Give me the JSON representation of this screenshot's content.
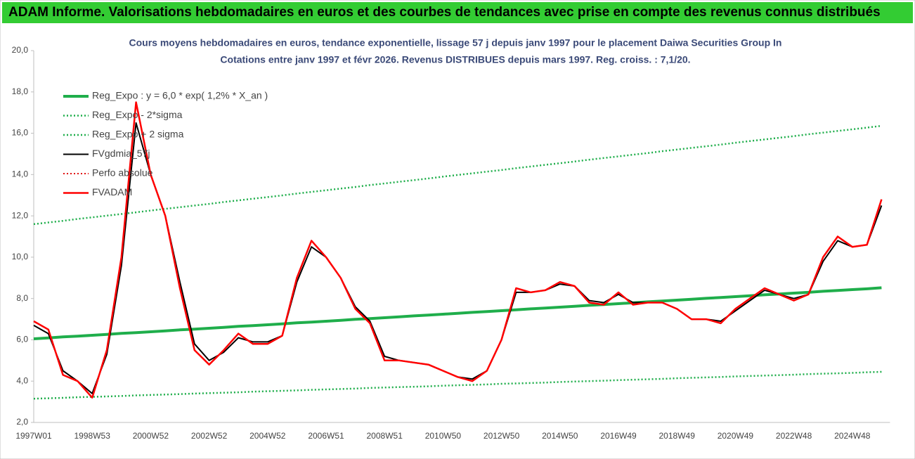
{
  "chart_data": {
    "type": "line",
    "banner": "ADAM Informe. Valorisations hebdomadaires en euros et des courbes de tendances avec prise en compte des revenus connus distribués",
    "title": "Cours moyens hebdomadaires en euros, tendance exponentielle, lissage 57 j depuis janv 1997 pour le placement Daiwa Securities Group In",
    "subtitle": "Cotations entre janv 1997 et févr 2026. Revenus DISTRIBUES depuis mars 1997. Reg. croiss. : 7,1/20.",
    "categories": [
      "1997W01",
      null,
      null,
      null,
      "1998W53",
      null,
      null,
      null,
      "2000W52",
      null,
      null,
      null,
      "2002W52",
      null,
      null,
      null,
      "2004W52",
      null,
      null,
      null,
      "2006W51",
      null,
      null,
      null,
      "2008W51",
      null,
      null,
      null,
      "2010W50",
      null,
      null,
      null,
      "2012W50",
      null,
      null,
      null,
      "2014W50",
      null,
      null,
      null,
      "2016W49",
      null,
      null,
      null,
      "2018W49",
      null,
      null,
      null,
      "2020W49",
      null,
      null,
      null,
      "2022W48",
      null,
      null,
      null,
      "2024W48",
      null,
      null
    ],
    "ylim": [
      2,
      20
    ],
    "yticks": [
      {
        "value": 2,
        "label": "2,0"
      },
      {
        "value": 4,
        "label": "4,0"
      },
      {
        "value": 6,
        "label": "6,0"
      },
      {
        "value": 8,
        "label": "8,0"
      },
      {
        "value": 10,
        "label": "10,0"
      },
      {
        "value": 12,
        "label": "12,0"
      },
      {
        "value": 14,
        "label": "14,0"
      },
      {
        "value": 16,
        "label": "16,0"
      },
      {
        "value": 18,
        "label": "18,0"
      },
      {
        "value": 20,
        "label": "20,0"
      }
    ],
    "grid": false,
    "legend": "upper left",
    "series": [
      {
        "name": "Reg_Expo : y = 6,0 * exp( 1,2% *  X_an )",
        "color": "#1fae4b",
        "style": "solid",
        "width": 4,
        "values": [
          6.05,
          6.09,
          6.14,
          6.18,
          6.22,
          6.26,
          6.31,
          6.35,
          6.39,
          6.43,
          6.48,
          6.52,
          6.56,
          6.6,
          6.65,
          6.69,
          6.73,
          6.77,
          6.82,
          6.86,
          6.9,
          6.94,
          6.99,
          7.03,
          7.07,
          7.11,
          7.16,
          7.2,
          7.24,
          7.28,
          7.33,
          7.37,
          7.41,
          7.45,
          7.5,
          7.54,
          7.58,
          7.62,
          7.67,
          7.71,
          7.75,
          7.79,
          7.84,
          7.88,
          7.92,
          7.96,
          8.01,
          8.05,
          8.09,
          8.13,
          8.18,
          8.22,
          8.26,
          8.3,
          8.35,
          8.39,
          8.43,
          8.47,
          8.52
        ]
      },
      {
        "name": "Reg_Expo - 2*sigma",
        "color": "#1fae4b",
        "style": "dotted",
        "width": 2.5,
        "values": [
          3.15,
          3.17,
          3.19,
          3.22,
          3.24,
          3.26,
          3.28,
          3.31,
          3.33,
          3.35,
          3.37,
          3.4,
          3.42,
          3.44,
          3.46,
          3.49,
          3.51,
          3.53,
          3.55,
          3.58,
          3.6,
          3.62,
          3.64,
          3.67,
          3.69,
          3.71,
          3.73,
          3.75,
          3.78,
          3.8,
          3.82,
          3.84,
          3.87,
          3.89,
          3.91,
          3.93,
          3.96,
          3.98,
          4.0,
          4.02,
          4.05,
          4.07,
          4.09,
          4.11,
          4.14,
          4.16,
          4.18,
          4.2,
          4.23,
          4.25,
          4.27,
          4.29,
          4.31,
          4.34,
          4.36,
          4.38,
          4.4,
          4.43,
          4.45
        ]
      },
      {
        "name": "Reg_Expo + 2 sigma",
        "color": "#1fae4b",
        "style": "dotted",
        "width": 2.5,
        "values": [
          11.6,
          11.68,
          11.76,
          11.85,
          11.93,
          12.01,
          12.09,
          12.17,
          12.26,
          12.34,
          12.42,
          12.5,
          12.58,
          12.67,
          12.75,
          12.83,
          12.91,
          12.99,
          13.08,
          13.16,
          13.24,
          13.32,
          13.4,
          13.49,
          13.57,
          13.65,
          13.73,
          13.81,
          13.9,
          13.98,
          14.06,
          14.14,
          14.22,
          14.31,
          14.39,
          14.47,
          14.55,
          14.63,
          14.72,
          14.8,
          14.88,
          14.96,
          15.04,
          15.13,
          15.21,
          15.29,
          15.37,
          15.45,
          15.54,
          15.62,
          15.7,
          15.78,
          15.86,
          15.95,
          16.03,
          16.11,
          16.19,
          16.27,
          16.36
        ]
      },
      {
        "name": "FVgdmia_57j",
        "color": "#000000",
        "style": "solid",
        "width": 2,
        "values": [
          6.7,
          6.3,
          4.5,
          4.0,
          3.4,
          5.3,
          9.6,
          16.5,
          14.0,
          12.0,
          8.8,
          5.8,
          5.0,
          5.4,
          6.1,
          5.9,
          5.9,
          6.2,
          8.8,
          10.5,
          10.0,
          9.0,
          7.6,
          6.9,
          5.2,
          5.0,
          4.9,
          4.8,
          4.5,
          4.2,
          4.1,
          4.5,
          6.0,
          8.3,
          8.3,
          8.4,
          8.7,
          8.6,
          7.9,
          7.8,
          8.2,
          7.8,
          7.8,
          7.8,
          7.5,
          7.0,
          7.0,
          6.9,
          7.4,
          7.9,
          8.4,
          8.2,
          8.0,
          8.2,
          9.8,
          10.8,
          10.5,
          10.6,
          12.5
        ]
      },
      {
        "name": "Perfo absolue",
        "color": "#e01010",
        "style": "dotted",
        "width": 2,
        "values": [
          null,
          null,
          null,
          null,
          null,
          null,
          null,
          null,
          null,
          null,
          null,
          null,
          null,
          null,
          null,
          null,
          null,
          null,
          null,
          null,
          null,
          null,
          null,
          null,
          null,
          null,
          null,
          null,
          null,
          null,
          null,
          null,
          null,
          null,
          null,
          null,
          null,
          null,
          null,
          null,
          null,
          null,
          null,
          null,
          null,
          null,
          null,
          null,
          null,
          null,
          null,
          null,
          null,
          null,
          null,
          null,
          null,
          null,
          null
        ]
      },
      {
        "name": "FVADAM",
        "color": "#ff0000",
        "style": "solid",
        "width": 2.5,
        "values": [
          6.9,
          6.5,
          4.3,
          4.0,
          3.2,
          5.5,
          10.0,
          17.5,
          14.0,
          12.0,
          8.5,
          5.5,
          4.8,
          5.5,
          6.3,
          5.8,
          5.8,
          6.2,
          9.0,
          10.8,
          10.0,
          9.0,
          7.5,
          6.8,
          5.0,
          5.0,
          4.9,
          4.8,
          4.5,
          4.2,
          4.0,
          4.5,
          6.0,
          8.5,
          8.3,
          8.4,
          8.8,
          8.6,
          7.8,
          7.7,
          8.3,
          7.7,
          7.8,
          7.8,
          7.5,
          7.0,
          7.0,
          6.8,
          7.5,
          8.0,
          8.5,
          8.2,
          7.9,
          8.2,
          10.0,
          11.0,
          10.5,
          10.6,
          12.8
        ]
      }
    ]
  }
}
